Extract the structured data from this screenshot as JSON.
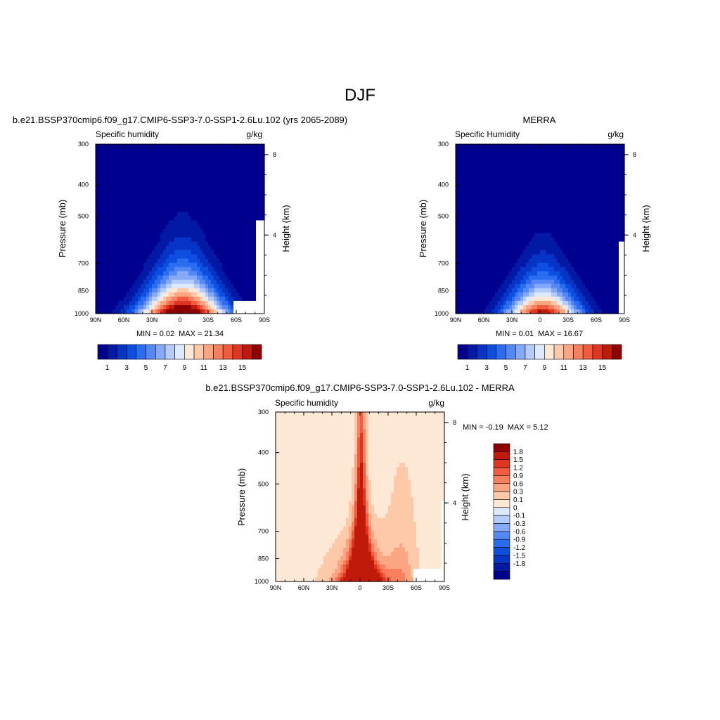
{
  "page_title": "DJF",
  "colors": {
    "abs_palette": [
      "#00008f",
      "#0219a6",
      "#0534c6",
      "#0c4fe0",
      "#2b6df0",
      "#5588f5",
      "#86a8f8",
      "#b5cbfb",
      "#dde9fd",
      "#fde8d6",
      "#fdc9a8",
      "#fca583",
      "#f8805f",
      "#f25c3e",
      "#e03520",
      "#c01a0b",
      "#8f0000"
    ],
    "diff_palette": [
      "#00008f",
      "#0219a6",
      "#0534c6",
      "#0c4fe0",
      "#2b6df0",
      "#5588f5",
      "#86a8f8",
      "#b5cbfb",
      "#dde9fd",
      "#fde8d6",
      "#fdc9a8",
      "#fca583",
      "#f8805f",
      "#f25c3e",
      "#e03520",
      "#c01a0b",
      "#8f0000"
    ],
    "missing": "#ffffff"
  },
  "panels": {
    "model": {
      "title": "b.e21.BSSP370cmip6.f09_g17.CMIP6-SSP3-7.0-SSP1-2.6Lu.102 (yrs 2065-2089)",
      "variable": "Specific humidity",
      "units": "g/kg",
      "ylabel": "Pressure (mb)",
      "ylabel_right": "Height (km)",
      "min_label": "MIN = ",
      "min_value": "0.02",
      "max_label": "MAX = ",
      "max_value": "21.34"
    },
    "obs": {
      "title": "MERRA",
      "variable": "Specific Humidity",
      "units": "g/kg",
      "ylabel": "Pressure (mb)",
      "ylabel_right": "Height (km)",
      "min_label": "MIN = ",
      "min_value": "0.01",
      "max_label": "MAX = ",
      "max_value": "16.67"
    },
    "diff": {
      "title": "b.e21.BSSP370cmip6.f09_g17.CMIP6-SSP3-7.0-SSP1-2.6Lu.102 - MERRA",
      "variable": "Specific humidity",
      "units": "g/kg",
      "ylabel": "Pressure (mb)",
      "ylabel_right": "Height (km)",
      "min_label": "MIN = ",
      "min_value": "-0.19",
      "max_label": "MAX = ",
      "max_value": "5.12"
    }
  },
  "chart_data": [
    {
      "type": "heatmap",
      "panel": "model",
      "title": "b.e21.BSSP370cmip6.f09_g17.CMIP6-SSP3-7.0-SSP1-2.6Lu.102 (yrs 2065-2089)",
      "xlabel": "",
      "ylabel": "Pressure (mb)",
      "ylabel_right": "Height (km)",
      "x_ticks": [
        "90N",
        "60N",
        "30N",
        "0",
        "30S",
        "60S",
        "90S"
      ],
      "x_tick_values": [
        90,
        60,
        30,
        0,
        -30,
        -60,
        -90
      ],
      "y_ticks": [
        "300",
        "400",
        "500",
        "700",
        "850",
        "1000"
      ],
      "y_tick_values": [
        300,
        400,
        500,
        700,
        850,
        1000
      ],
      "y_scale": "log",
      "ylim": [
        1000,
        300
      ],
      "xlim": [
        90,
        -90
      ],
      "right_ticks": [
        "8",
        "4"
      ],
      "right_tick_values": [
        8,
        4
      ],
      "levels": [
        1,
        2,
        3,
        4,
        5,
        6,
        7,
        8,
        9,
        10,
        11,
        12,
        13,
        14,
        15,
        16
      ],
      "colorbar_labels": [
        "1",
        "3",
        "5",
        "7",
        "9",
        "11",
        "13",
        "15"
      ],
      "min": 0.02,
      "max": 21.34,
      "grid": false
    },
    {
      "type": "heatmap",
      "panel": "obs",
      "title": "MERRA",
      "xlabel": "",
      "ylabel": "Pressure (mb)",
      "ylabel_right": "Height (km)",
      "x_ticks": [
        "90N",
        "60N",
        "30N",
        "0",
        "30S",
        "60S",
        "90S"
      ],
      "x_tick_values": [
        90,
        60,
        30,
        0,
        -30,
        -60,
        -90
      ],
      "y_ticks": [
        "300",
        "400",
        "500",
        "700",
        "850",
        "1000"
      ],
      "y_tick_values": [
        300,
        400,
        500,
        700,
        850,
        1000
      ],
      "y_scale": "log",
      "ylim": [
        1000,
        300
      ],
      "xlim": [
        90,
        -90
      ],
      "right_ticks": [
        "8",
        "4"
      ],
      "right_tick_values": [
        8,
        4
      ],
      "levels": [
        1,
        2,
        3,
        4,
        5,
        6,
        7,
        8,
        9,
        10,
        11,
        12,
        13,
        14,
        15,
        16
      ],
      "colorbar_labels": [
        "1",
        "3",
        "5",
        "7",
        "9",
        "11",
        "13",
        "15"
      ],
      "min": 0.01,
      "max": 16.67,
      "grid": false
    },
    {
      "type": "heatmap",
      "panel": "diff",
      "title": "b.e21.BSSP370cmip6.f09_g17.CMIP6-SSP3-7.0-SSP1-2.6Lu.102 - MERRA",
      "xlabel": "",
      "ylabel": "Pressure (mb)",
      "ylabel_right": "Height (km)",
      "x_ticks": [
        "90N",
        "60N",
        "30N",
        "0",
        "30S",
        "60S",
        "90S"
      ],
      "x_tick_values": [
        90,
        60,
        30,
        0,
        -30,
        -60,
        -90
      ],
      "y_ticks": [
        "300",
        "400",
        "500",
        "700",
        "850",
        "1000"
      ],
      "y_tick_values": [
        300,
        400,
        500,
        700,
        850,
        1000
      ],
      "y_scale": "log",
      "ylim": [
        1000,
        300
      ],
      "xlim": [
        90,
        -90
      ],
      "right_ticks": [
        "8",
        "4"
      ],
      "right_tick_values": [
        8,
        4
      ],
      "levels": [
        -1.8,
        -1.5,
        -1.2,
        -0.9,
        -0.6,
        -0.3,
        -0.1,
        0,
        0.1,
        0.3,
        0.6,
        0.9,
        1.2,
        1.5,
        1.8
      ],
      "colorbar_labels": [
        "1.8",
        "1.5",
        "1.2",
        "0.9",
        "0.6",
        "0.3",
        "0.1",
        "0",
        "-0.1",
        "-0.3",
        "-0.6",
        "-0.9",
        "-1.2",
        "-1.5",
        "-1.8"
      ],
      "min": -0.19,
      "max": 5.12,
      "grid": false
    }
  ]
}
